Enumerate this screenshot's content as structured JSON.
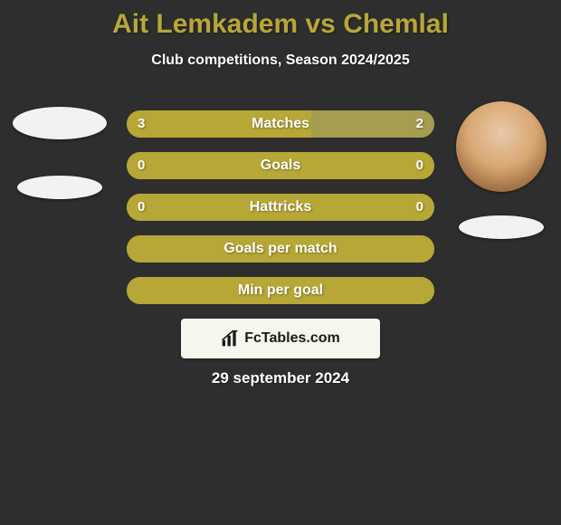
{
  "background_color": "#2e2e2e",
  "title": {
    "text": "Ait Lemkadem vs Chemlal",
    "color": "#b7a736",
    "fontsize": 30
  },
  "subtitle": {
    "text": "Club competitions, Season 2024/2025",
    "color": "#ffffff",
    "fontsize": 16
  },
  "colors": {
    "left": "#b7a736",
    "right": "#a59d50",
    "neutral": "#a89f48"
  },
  "rows": [
    {
      "label": "Matches",
      "left_val": "3",
      "right_val": "2",
      "left_pct": 60,
      "right_pct": 40
    },
    {
      "label": "Goals",
      "left_val": "0",
      "right_val": "0",
      "left_pct": 100,
      "right_pct": 0
    },
    {
      "label": "Hattricks",
      "left_val": "0",
      "right_val": "0",
      "left_pct": 100,
      "right_pct": 0
    },
    {
      "label": "Goals per match",
      "left_val": "",
      "right_val": "",
      "left_pct": 100,
      "right_pct": 0
    },
    {
      "label": "Min per goal",
      "left_val": "",
      "right_val": "",
      "left_pct": 100,
      "right_pct": 0
    }
  ],
  "logo": {
    "icon_name": "bar-chart-icon",
    "text": "FcTables.com",
    "box_bg": "#f6f6ee",
    "text_color": "#1a1a1a"
  },
  "date": "29 september 2024"
}
